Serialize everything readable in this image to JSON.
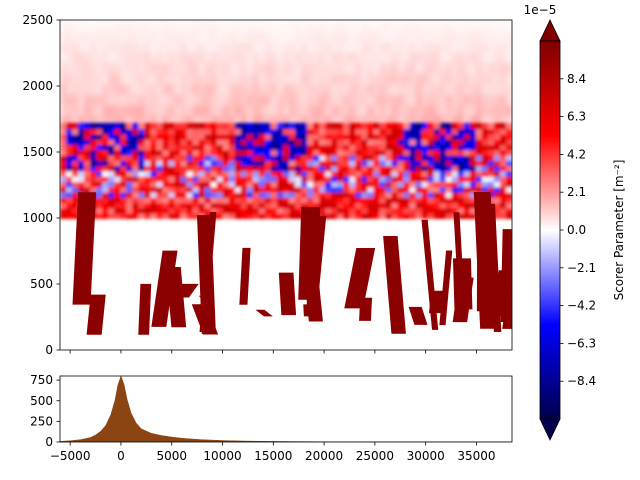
{
  "chart_data": [
    {
      "type": "heatmap",
      "title": "",
      "xlabel": "",
      "ylabel": "",
      "xlim": [
        -6000,
        38500
      ],
      "ylim": [
        0,
        2500
      ],
      "y_ticks": [
        "0",
        "500",
        "1000",
        "1500",
        "2000",
        "2500"
      ],
      "x_tick_values": [
        -5000,
        0,
        5000,
        10000,
        15000,
        20000,
        25000,
        30000,
        35000
      ],
      "x_tick_labels_shown": false,
      "grid": false,
      "colormap": "seismic",
      "colormap_colors": [
        "#00004c",
        "#0000ff",
        "#ffffff",
        "#ff0000",
        "#7f0000"
      ],
      "description_of_field": [
        {
          "band": "upper",
          "y_range": [
            1700,
            2500
          ],
          "sign": "positive",
          "magnitude": "weak"
        },
        {
          "band": "middle",
          "y_range": [
            1000,
            1700
          ],
          "sign": "mixed",
          "magnitude": "moderate to strong"
        },
        {
          "band": "lower",
          "y_range": [
            0,
            1000
          ],
          "sign": "positive or masked",
          "magnitude": "saturated"
        }
      ],
      "colorbar": {
        "label": "Scorer Parameter [$m^{-2}$]",
        "label_display": "Scorer Parameter [m⁻²]",
        "offset_text": "1e−5",
        "scale_exponent": -5,
        "range": [
          -10.5,
          10.5
        ],
        "extend": "both",
        "tick_values": [
          -8.4,
          -6.3,
          -4.2,
          -2.1,
          0.0,
          2.1,
          4.2,
          6.3,
          8.4
        ],
        "tick_labels": [
          "−8.4",
          "−6.3",
          "−4.2",
          "−2.1",
          "0.0",
          "2.1",
          "4.2",
          "6.3",
          "8.4"
        ]
      }
    },
    {
      "type": "area",
      "title": "",
      "xlabel": "",
      "ylabel": "",
      "xlim": [
        -6000,
        38500
      ],
      "ylim": [
        0,
        800
      ],
      "x_ticks": [
        "−5000",
        "0",
        "5000",
        "10000",
        "15000",
        "20000",
        "25000",
        "30000",
        "35000"
      ],
      "x_tick_values": [
        -5000,
        0,
        5000,
        10000,
        15000,
        20000,
        25000,
        30000,
        35000
      ],
      "y_ticks": [
        "0",
        "250",
        "500",
        "750"
      ],
      "y_tick_values": [
        0,
        250,
        500,
        750
      ],
      "fill_color": "#8b4513",
      "x": [
        -6000,
        -5000,
        -4000,
        -3000,
        -2500,
        -2000,
        -1500,
        -1000,
        -600,
        -300,
        0,
        300,
        600,
        1000,
        1500,
        2000,
        3000,
        4000,
        5000,
        6000,
        7000,
        8000,
        10000,
        12000,
        15000,
        20000,
        25000,
        30000,
        38500
      ],
      "values": [
        8,
        15,
        28,
        55,
        85,
        130,
        200,
        330,
        500,
        690,
        800,
        700,
        520,
        350,
        230,
        160,
        105,
        78,
        60,
        46,
        36,
        28,
        18,
        12,
        7,
        3,
        2,
        1,
        0
      ]
    }
  ]
}
